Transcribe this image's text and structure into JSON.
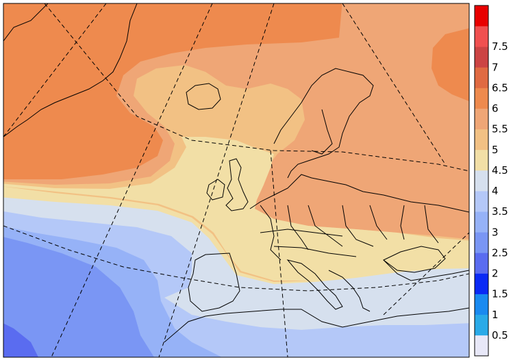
{
  "map": {
    "kind": "filled-contour-map",
    "region": "Europe and North Atlantic",
    "graticule": "dashed"
  },
  "colorbar": {
    "position": "right",
    "levels": [
      {
        "label": "",
        "color": "#e8e8f8"
      },
      {
        "label": "0.5",
        "color": "#2aaae8"
      },
      {
        "label": "1",
        "color": "#1a8af0"
      },
      {
        "label": "1.5",
        "color": "#0a2af5"
      },
      {
        "label": "2",
        "color": "#5a6cf0"
      },
      {
        "label": "2.5",
        "color": "#7a96f4"
      },
      {
        "label": "3",
        "color": "#96b2f7"
      },
      {
        "label": "3.5",
        "color": "#b4c8f8"
      },
      {
        "label": "4",
        "color": "#d6e0ee"
      },
      {
        "label": "4.5",
        "color": "#f2dfa6"
      },
      {
        "label": "5",
        "color": "#f2c184"
      },
      {
        "label": "5.5",
        "color": "#efa676"
      },
      {
        "label": "6",
        "color": "#ee8a4e"
      },
      {
        "label": "6.5",
        "color": "#e06a42"
      },
      {
        "label": "7",
        "color": "#cc4444"
      },
      {
        "label": "7.5",
        "color": "#f05050"
      },
      {
        "label": "",
        "color": "#e80000"
      }
    ]
  }
}
